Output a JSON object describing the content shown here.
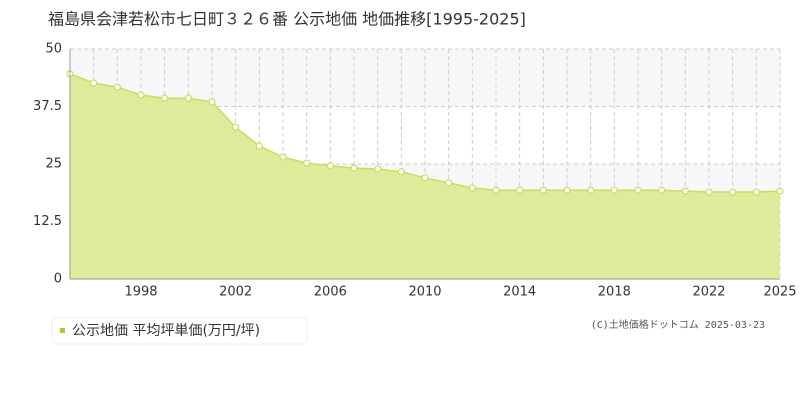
{
  "chart_data": {
    "type": "area",
    "title": "福島県会津若松市七日町３２６番 公示地価 地価推移[1995-2025]",
    "credit": "(C)土地価格ドットコム 2025-03-23",
    "x": [
      1995,
      1996,
      1997,
      1998,
      1999,
      2000,
      2001,
      2002,
      2003,
      2004,
      2005,
      2006,
      2007,
      2008,
      2009,
      2010,
      2011,
      2012,
      2013,
      2014,
      2015,
      2016,
      2017,
      2018,
      2019,
      2020,
      2021,
      2022,
      2023,
      2024,
      2025
    ],
    "series": [
      {
        "name": "公示地価 平均坪単価(万円/坪)",
        "color": "#c5df5c",
        "values": [
          44.6,
          42.6,
          41.7,
          40.0,
          39.3,
          39.3,
          38.5,
          33.0,
          28.9,
          26.5,
          25.2,
          24.6,
          24.1,
          23.9,
          23.3,
          22.0,
          20.9,
          19.8,
          19.3,
          19.3,
          19.3,
          19.3,
          19.3,
          19.3,
          19.3,
          19.3,
          19.1,
          18.9,
          18.9,
          18.9,
          19.1
        ]
      }
    ],
    "xlim": [
      1995,
      2025
    ],
    "ylim": [
      0,
      50
    ],
    "xticks": [
      1998,
      2002,
      2006,
      2010,
      2014,
      2018,
      2022,
      2025
    ],
    "yticks": [
      0,
      12.5,
      25,
      37.5,
      50
    ],
    "grid": true
  }
}
